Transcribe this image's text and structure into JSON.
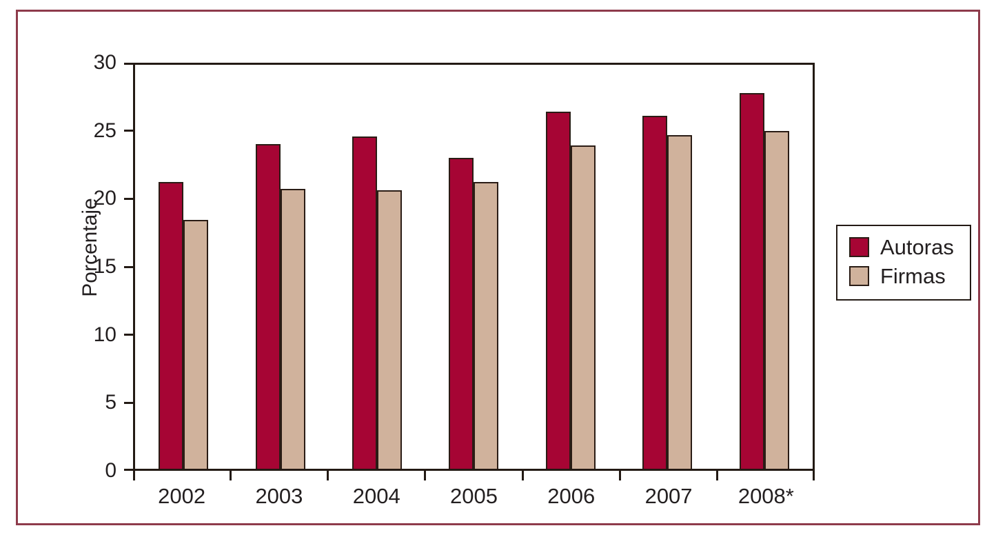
{
  "figure": {
    "background": "#ffffff",
    "border_color": "#8e3b4b"
  },
  "chart_data": {
    "type": "bar",
    "title": "",
    "xlabel": "",
    "ylabel": "Porcentaje",
    "ylim": [
      0,
      30
    ],
    "yticks": [
      0,
      5,
      10,
      15,
      20,
      25,
      30
    ],
    "grid": false,
    "legend_position": "right",
    "categories": [
      "2002",
      "2003",
      "2004",
      "2005",
      "2006",
      "2007",
      "2008*"
    ],
    "series": [
      {
        "name": "Autoras",
        "color": "#a60534",
        "values": [
          21.3,
          24.1,
          24.7,
          23.1,
          26.5,
          26.2,
          27.9
        ]
      },
      {
        "name": "Firmas",
        "color": "#d0b29c",
        "values": [
          18.5,
          20.8,
          20.7,
          21.3,
          24.0,
          24.8,
          25.1
        ]
      }
    ],
    "bar_outline_color": "#2a1c15",
    "axis_color": "#231a14",
    "text_color": "#231f20"
  }
}
